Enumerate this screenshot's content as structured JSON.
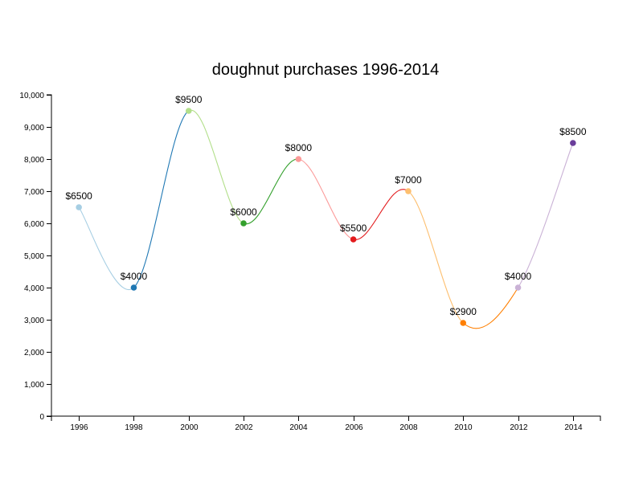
{
  "chart_data": {
    "type": "line",
    "title": "doughnut purchases 1996-2014",
    "x": [
      1996,
      1998,
      2000,
      2002,
      2004,
      2006,
      2008,
      2010,
      2012,
      2014
    ],
    "values": [
      6500,
      4000,
      9500,
      6000,
      8000,
      5500,
      7000,
      2900,
      4000,
      8500
    ],
    "data_labels": [
      "$6500",
      "$4000",
      "$9500",
      "$6000",
      "$8000",
      "$5500",
      "$7000",
      "$2900",
      "$4000",
      "$8500"
    ],
    "x_tick_labels": [
      "1996",
      "1998",
      "2000",
      "2002",
      "2004",
      "2006",
      "2008",
      "2010",
      "2012",
      "2014"
    ],
    "y_tick_labels": [
      "0",
      "1,000",
      "2,000",
      "3,000",
      "4,000",
      "5,000",
      "6,000",
      "7,000",
      "8,000",
      "9,000",
      "10,000"
    ],
    "y_ticks": [
      0,
      1000,
      2000,
      3000,
      4000,
      5000,
      6000,
      7000,
      8000,
      9000,
      10000
    ],
    "ylim": [
      0,
      10000
    ],
    "xlim": [
      1995,
      2015
    ],
    "grid": false,
    "curve": "smooth",
    "point_colors": [
      "#a6cee3",
      "#1f78b4",
      "#b2df8a",
      "#33a02c",
      "#fb9a99",
      "#e31a1c",
      "#fdbf6f",
      "#ff7f00",
      "#cab2d6",
      "#6a3d9a"
    ]
  }
}
